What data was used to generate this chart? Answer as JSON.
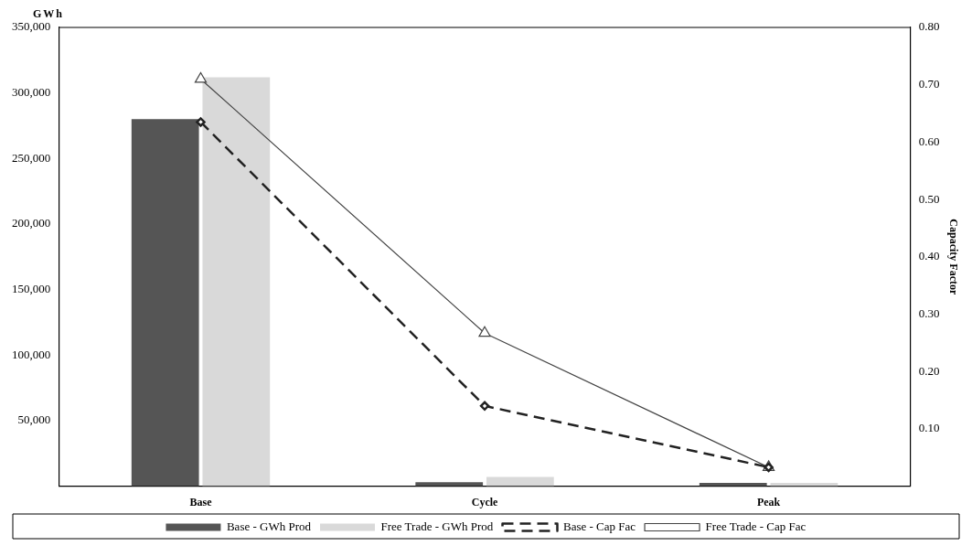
{
  "chart_data": {
    "type": "bar",
    "ylabel": "GWh",
    "y2label": "Capacity Factor",
    "categories": [
      "Base",
      "Cycle",
      "Peak"
    ],
    "series": [
      {
        "name": "Base - GWh Prod",
        "color": "#555555",
        "values": [
          280000,
          3000,
          2500
        ]
      },
      {
        "name": "Free Trade - GWh Prod",
        "color": "#d9d9d9",
        "values": [
          312000,
          7000,
          2500
        ]
      },
      {
        "name": "Base - Cap Fac",
        "type": "line",
        "axis": "y2",
        "color": "#222222",
        "marker": "diamond",
        "line_style": "dashed",
        "values": [
          0.635,
          0.14,
          0.033
        ]
      },
      {
        "name": "Free Trade - Cap Fac",
        "type": "line",
        "axis": "y2",
        "color": "#444444",
        "marker": "triangle",
        "line_style": "solid",
        "values": [
          0.71,
          0.267,
          0.033
        ]
      }
    ],
    "ylim": [
      0,
      350000
    ],
    "yticks": [
      {
        "value": 50000,
        "label": "50,000"
      },
      {
        "value": 100000,
        "label": "100,000"
      },
      {
        "value": 150000,
        "label": "150,000"
      },
      {
        "value": 200000,
        "label": "200,000"
      },
      {
        "value": 250000,
        "label": "250,000"
      },
      {
        "value": 300000,
        "label": "300,000"
      },
      {
        "value": 350000,
        "label": "350,000"
      }
    ],
    "y2lim": [
      0,
      0.8
    ],
    "y2ticks": [
      {
        "value": 0.1,
        "label": "0.10"
      },
      {
        "value": 0.2,
        "label": "0.20"
      },
      {
        "value": 0.3,
        "label": "0.30"
      },
      {
        "value": 0.4,
        "label": "0.40"
      },
      {
        "value": 0.5,
        "label": "0.50"
      },
      {
        "value": 0.6,
        "label": "0.60"
      },
      {
        "value": 0.7,
        "label": "0.70"
      },
      {
        "value": 0.8,
        "label": "0.80"
      }
    ],
    "grid": false,
    "legend": "bottom"
  }
}
